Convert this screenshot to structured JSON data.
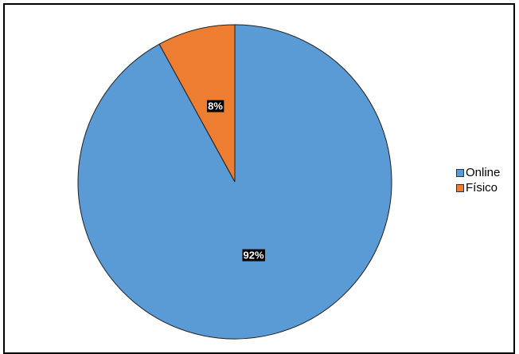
{
  "chart_data": {
    "type": "pie",
    "categories": [
      "Online",
      "Físico"
    ],
    "values": [
      92,
      8
    ],
    "labels": [
      "92%",
      "8%"
    ],
    "colors": [
      "#5b9bd5",
      "#ed7d31"
    ],
    "start": "12 o'clock",
    "direction": "clockwise",
    "legend_position": "right"
  }
}
